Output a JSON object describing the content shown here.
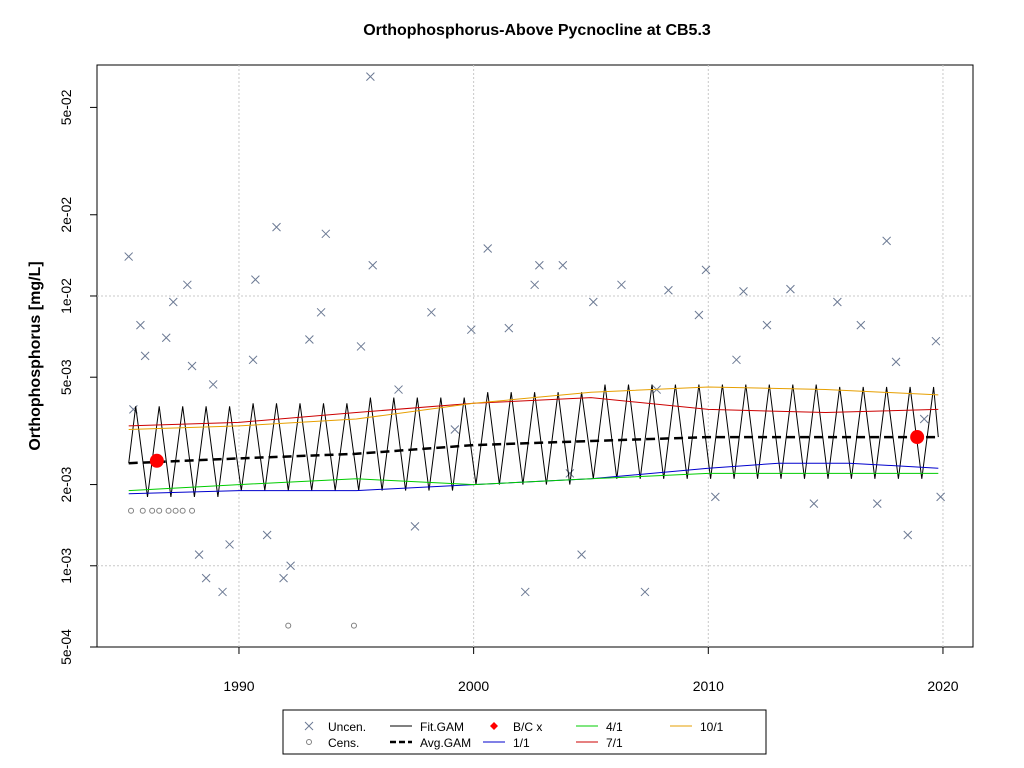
{
  "chart_data": {
    "type": "line",
    "title": "Orthophosphorus-Above Pycnocline at CB5.3",
    "ylabel": "Orthophosphorus [mg/L]",
    "log_y": true,
    "grid": true,
    "xlim": [
      1983.95,
      2021.28
    ],
    "xticks": [
      1990,
      2000,
      2010,
      2020
    ],
    "ylim": [
      0.0005,
      0.0718
    ],
    "yticks": [
      {
        "value": 0.0005,
        "label": "5e-04"
      },
      {
        "value": 0.001,
        "label": "1e-03"
      },
      {
        "value": 0.002,
        "label": "2e-03"
      },
      {
        "value": 0.005,
        "label": "5e-03"
      },
      {
        "value": 0.01,
        "label": "1e-02"
      },
      {
        "value": 0.02,
        "label": "2e-02"
      },
      {
        "value": 0.05,
        "label": "5e-02"
      }
    ],
    "series": [
      {
        "name": "Uncen.",
        "color": "#6c7a94",
        "mode": "x",
        "x": [
          1985.3,
          1985.5,
          1985.8,
          1986.0,
          1986.9,
          1987.2,
          1987.8,
          1988.0,
          1988.3,
          1988.6,
          1988.9,
          1989.3,
          1989.6,
          1990.6,
          1990.7,
          1991.2,
          1991.6,
          1991.9,
          1992.2,
          1993.0,
          1993.5,
          1993.7,
          1995.2,
          1995.6,
          1995.7,
          1996.8,
          1997.5,
          1998.2,
          1999.2,
          1999.9,
          2000.6,
          2001.5,
          2002.2,
          2002.6,
          2002.8,
          2003.8,
          2004.1,
          2004.6,
          2005.1,
          2006.3,
          2007.3,
          2007.8,
          2008.3,
          2009.6,
          2009.9,
          2010.3,
          2011.2,
          2011.5,
          2012.5,
          2013.5,
          2014.5,
          2015.5,
          2016.5,
          2017.2,
          2017.6,
          2018.0,
          2018.5,
          2019.2,
          2019.7,
          2019.9
        ],
        "values": [
          0.014,
          0.0038,
          0.0078,
          0.006,
          0.007,
          0.0095,
          0.011,
          0.0055,
          0.0011,
          0.0009,
          0.0047,
          0.0008,
          0.0012,
          0.0058,
          0.0115,
          0.0013,
          0.018,
          0.0009,
          0.001,
          0.0069,
          0.0087,
          0.017,
          0.0065,
          0.065,
          0.013,
          0.0045,
          0.0014,
          0.0087,
          0.0032,
          0.0075,
          0.015,
          0.0076,
          0.0008,
          0.011,
          0.013,
          0.013,
          0.0022,
          0.0011,
          0.0095,
          0.011,
          0.0008,
          0.0045,
          0.0105,
          0.0085,
          0.0125,
          0.0018,
          0.0058,
          0.0104,
          0.0078,
          0.0106,
          0.0017,
          0.0095,
          0.0078,
          0.0017,
          0.016,
          0.0057,
          0.0013,
          0.0035,
          0.0068,
          0.0018
        ]
      },
      {
        "name": "Cens.",
        "color": "#808080",
        "mode": "o",
        "x": [
          1985.4,
          1985.9,
          1986.3,
          1986.6,
          1987.0,
          1987.3,
          1987.6,
          1988.0,
          1992.1,
          1994.9
        ],
        "values": [
          0.0016,
          0.0016,
          0.0016,
          0.0016,
          0.0016,
          0.0016,
          0.0016,
          0.0016,
          0.0006,
          0.0006
        ]
      },
      {
        "name": "Fit.GAM",
        "color": "#000000",
        "mode": "line",
        "width": 1,
        "x": [
          1985.3,
          1985.6,
          1986.1,
          1986.6,
          1987.1,
          1987.6,
          1988.1,
          1988.6,
          1989.1,
          1989.6,
          1990.1,
          1990.6,
          1991.1,
          1991.6,
          1992.1,
          1992.6,
          1993.1,
          1993.6,
          1994.1,
          1994.6,
          1995.1,
          1995.6,
          1996.1,
          1996.6,
          1997.1,
          1997.6,
          1998.1,
          1998.6,
          1999.1,
          1999.6,
          2000.1,
          2000.6,
          2001.1,
          2001.6,
          2002.1,
          2002.6,
          2003.1,
          2003.6,
          2004.1,
          2004.6,
          2005.1,
          2005.6,
          2006.1,
          2006.6,
          2007.1,
          2007.6,
          2008.1,
          2008.6,
          2009.1,
          2009.6,
          2010.1,
          2010.6,
          2011.1,
          2011.6,
          2012.1,
          2012.6,
          2013.1,
          2013.6,
          2014.1,
          2014.6,
          2015.1,
          2015.6,
          2016.1,
          2016.6,
          2017.1,
          2017.6,
          2018.1,
          2018.6,
          2019.1,
          2019.6,
          2019.8
        ],
        "values": [
          0.0024,
          0.0039,
          0.0018,
          0.0039,
          0.0018,
          0.0039,
          0.0018,
          0.0039,
          0.0018,
          0.0039,
          0.0019,
          0.004,
          0.0019,
          0.004,
          0.0019,
          0.004,
          0.0019,
          0.004,
          0.0019,
          0.004,
          0.0019,
          0.0042,
          0.0019,
          0.0042,
          0.0019,
          0.0042,
          0.0019,
          0.0042,
          0.0019,
          0.0042,
          0.002,
          0.0044,
          0.002,
          0.0044,
          0.002,
          0.0044,
          0.002,
          0.0044,
          0.002,
          0.0044,
          0.0021,
          0.0047,
          0.0021,
          0.0047,
          0.0021,
          0.0047,
          0.0021,
          0.0047,
          0.0021,
          0.0047,
          0.0021,
          0.0047,
          0.0021,
          0.0047,
          0.0021,
          0.0047,
          0.0021,
          0.0047,
          0.0021,
          0.0047,
          0.0021,
          0.0046,
          0.0021,
          0.0046,
          0.0021,
          0.0046,
          0.0021,
          0.0046,
          0.0021,
          0.0046,
          0.003
        ]
      },
      {
        "name": "Avg.GAM",
        "color": "#000000",
        "mode": "line",
        "width": 2.5,
        "dash": true,
        "x": [
          1985.3,
          1990,
          1995,
          2000,
          2005,
          2010,
          2015,
          2019.8
        ],
        "values": [
          0.0024,
          0.0025,
          0.0026,
          0.0028,
          0.0029,
          0.003,
          0.003,
          0.003
        ]
      },
      {
        "name": "B/C x",
        "color": "#ff0000",
        "mode": "dot",
        "x": [
          1986.5,
          2018.9
        ],
        "values": [
          0.00245,
          0.003
        ]
      },
      {
        "name": "1/1",
        "color": "#0000cd",
        "mode": "line",
        "width": 1,
        "x": [
          1985.3,
          1990,
          1995,
          2000,
          2005,
          2010,
          2013,
          2016,
          2019.8
        ],
        "values": [
          0.00185,
          0.0019,
          0.0019,
          0.002,
          0.0021,
          0.0023,
          0.0024,
          0.0024,
          0.0023
        ]
      },
      {
        "name": "4/1",
        "color": "#00cc00",
        "mode": "line",
        "width": 1,
        "x": [
          1985.3,
          1990,
          1995,
          2000,
          2005,
          2010,
          2015,
          2019.8
        ],
        "values": [
          0.0019,
          0.002,
          0.0021,
          0.002,
          0.0021,
          0.0022,
          0.0022,
          0.0022
        ]
      },
      {
        "name": "7/1",
        "color": "#cc0000",
        "mode": "line",
        "width": 1,
        "x": [
          1985.3,
          1990,
          1995,
          2000,
          2005,
          2010,
          2015,
          2019.8
        ],
        "values": [
          0.0033,
          0.0034,
          0.0037,
          0.004,
          0.0042,
          0.0038,
          0.0037,
          0.0038
        ]
      },
      {
        "name": "10/1",
        "color": "#e69f00",
        "mode": "line",
        "width": 1,
        "x": [
          1985.3,
          1990,
          1995,
          2000,
          2005,
          2010,
          2015,
          2019.8
        ],
        "values": [
          0.0032,
          0.0033,
          0.0035,
          0.004,
          0.0044,
          0.0046,
          0.0045,
          0.0043
        ]
      }
    ]
  }
}
